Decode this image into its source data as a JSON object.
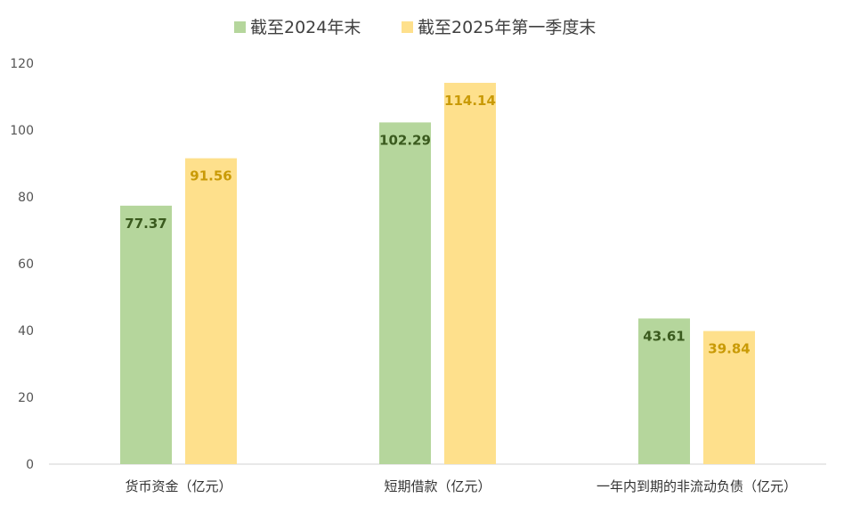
{
  "chart_data": {
    "type": "bar",
    "categories": [
      "货币资金（亿元）",
      "短期借款（亿元）",
      "一年内到期的非流动负债（亿元）"
    ],
    "series": [
      {
        "name": "截至2024年末",
        "values": [
          77.37,
          102.29,
          43.61
        ],
        "color": "#b5d69c",
        "label_color": "#3a5a1e"
      },
      {
        "name": "截至2025年第一季度末",
        "values": [
          91.56,
          114.14,
          39.84
        ],
        "color": "#fee08c",
        "label_color": "#c99a06"
      }
    ],
    "yticks": [
      0,
      20,
      40,
      60,
      80,
      100,
      120
    ],
    "ylim": [
      0,
      120
    ],
    "grid": false,
    "legend_position": "top-center",
    "title": "",
    "xlabel": "",
    "ylabel": ""
  }
}
